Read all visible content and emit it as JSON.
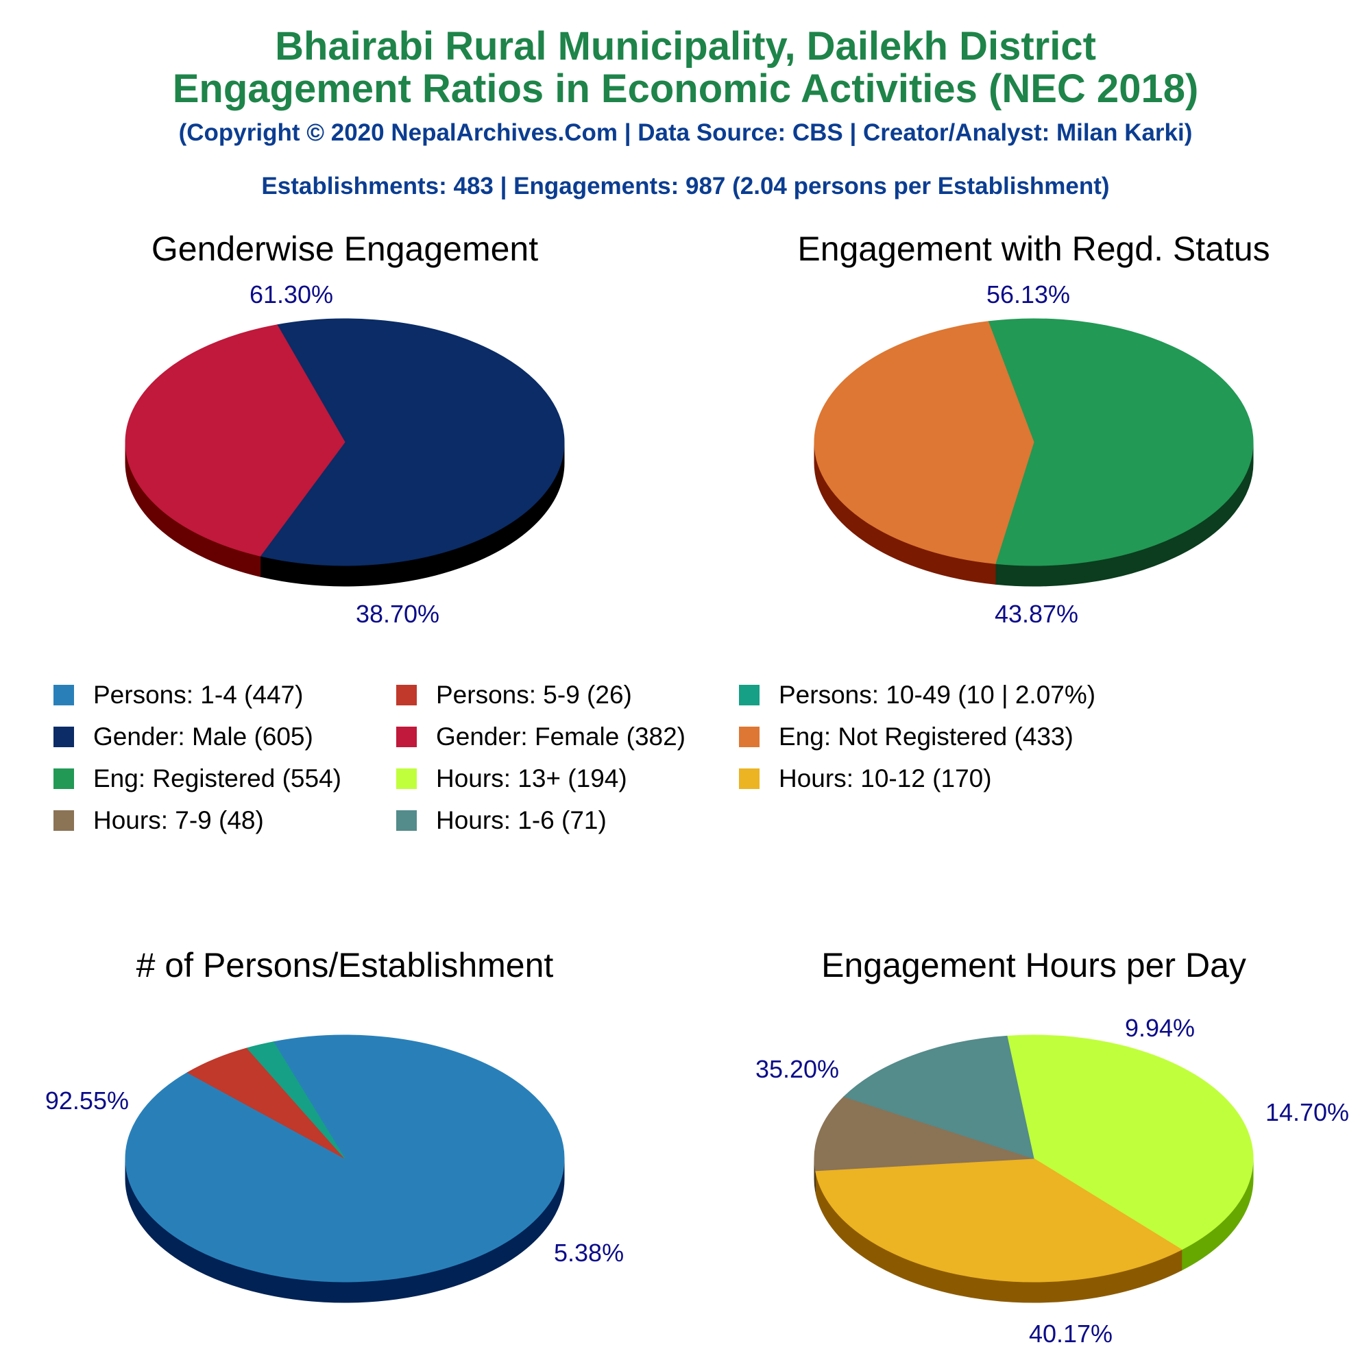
{
  "header": {
    "title_line1": "Bhairabi Rural Municipality, Dailekh District",
    "title_line2": "Engagement Ratios in Economic Activities (NEC 2018)",
    "copyright": "(Copyright © 2020 NepalArchives.Com | Data Source: CBS | Creator/Analyst: Milan Karki)",
    "summary": "Establishments: 483 | Engagements: 987 (2.04 persons per Establishment)"
  },
  "legend": [
    {
      "label": "Persons: 1-4 (447)",
      "color": "#2980b9"
    },
    {
      "label": "Persons: 5-9 (26)",
      "color": "#c0392b"
    },
    {
      "label": "Persons: 10-49 (10 | 2.07%)",
      "color": "#16a085"
    },
    {
      "label": "Gender: Male (605)",
      "color": "#0b2c66"
    },
    {
      "label": "Gender: Female (382)",
      "color": "#c0193b"
    },
    {
      "label": "Eng: Not Registered (433)",
      "color": "#dd7733"
    },
    {
      "label": "Eng: Registered (554)",
      "color": "#229955"
    },
    {
      "label": "Hours: 13+ (194)",
      "color": "#c0ff3c"
    },
    {
      "label": "Hours: 10-12 (170)",
      "color": "#ecb323"
    },
    {
      "label": "Hours: 7-9 (48)",
      "color": "#8b7355"
    },
    {
      "label": "Hours: 1-6 (71)",
      "color": "#548b8b"
    }
  ],
  "chart_data": [
    {
      "type": "pie",
      "title": "Genderwise Engagement",
      "slices": [
        {
          "name": "Gender: Male",
          "value": 605,
          "pct_label": "61.30%",
          "color": "#0b2c66",
          "side": "#000000"
        },
        {
          "name": "Gender: Female",
          "value": 382,
          "pct_label": "38.70%",
          "color": "#c0193b",
          "side": "#660000"
        }
      ]
    },
    {
      "type": "pie",
      "title": "Engagement with Regd. Status",
      "slices": [
        {
          "name": "Eng: Registered",
          "value": 554,
          "pct_label": "56.13%",
          "color": "#229955",
          "side": "#0b3d1e"
        },
        {
          "name": "Eng: Not Registered",
          "value": 433,
          "pct_label": "43.87%",
          "color": "#dd7733",
          "side": "#7a1a00"
        }
      ]
    },
    {
      "type": "pie",
      "title": "# of Persons/Establishment",
      "slices": [
        {
          "name": "Persons: 1-4",
          "value": 447,
          "pct_label": "92.55%",
          "color": "#2980b9",
          "side": "#002255"
        },
        {
          "name": "Persons: 5-9",
          "value": 26,
          "pct_label": "5.38%",
          "color": "#c0392b",
          "side": "#660000"
        },
        {
          "name": "Persons: 10-49",
          "value": 10,
          "pct_label": "",
          "color": "#16a085",
          "side": "#004433"
        }
      ]
    },
    {
      "type": "pie",
      "title": "Engagement Hours per Day",
      "slices": [
        {
          "name": "Hours: 13+",
          "value": 194,
          "pct_label": "40.17%",
          "color": "#c0ff3c",
          "side": "#66a800"
        },
        {
          "name": "Hours: 10-12",
          "value": 170,
          "pct_label": "35.20%",
          "color": "#ecb323",
          "side": "#8b5a00"
        },
        {
          "name": "Hours: 7-9",
          "value": 48,
          "pct_label": "9.94%",
          "color": "#8b7355",
          "side": "#4a3a20"
        },
        {
          "name": "Hours: 1-6",
          "value": 71,
          "pct_label": "14.70%",
          "color": "#548b8b",
          "side": "#1e4444"
        }
      ]
    }
  ]
}
